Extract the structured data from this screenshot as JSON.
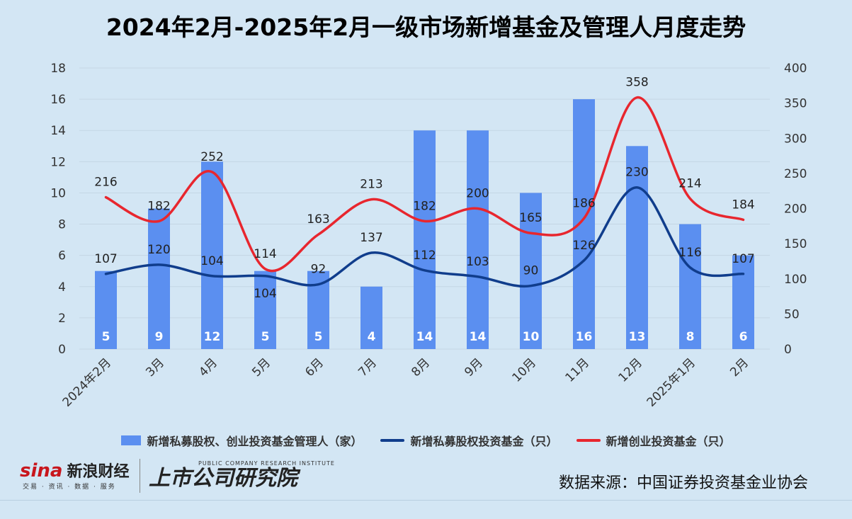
{
  "title": "2024年2月-2025年2月一级市场新增基金及管理人月度走势",
  "chart_data": {
    "type": "bar",
    "categories": [
      "2024年2月",
      "3月",
      "4月",
      "5月",
      "6月",
      "7月",
      "8月",
      "9月",
      "10月",
      "11月",
      "12月",
      "2025年1月",
      "2月"
    ],
    "left_axis": {
      "min": 0,
      "max": 18,
      "step": 2,
      "ticks": [
        "0",
        "2",
        "4",
        "6",
        "8",
        "10",
        "12",
        "14",
        "16",
        "18"
      ]
    },
    "right_axis": {
      "min": 0,
      "max": 400,
      "step": 50,
      "ticks": [
        "0",
        "50",
        "100",
        "150",
        "200",
        "250",
        "300",
        "350",
        "400"
      ]
    },
    "grid": true,
    "legend_position": "bottom",
    "series": [
      {
        "name": "新增私募股权、创业投资基金管理人（家）",
        "type": "bar",
        "axis": "left",
        "color": "#5b8ff0",
        "values": [
          5,
          9,
          12,
          5,
          5,
          4,
          14,
          14,
          10,
          16,
          13,
          8,
          6
        ],
        "labels": [
          "5",
          "9",
          "12",
          "5",
          "5",
          "4",
          "14",
          "14",
          "10",
          "16",
          "13",
          "8",
          "6"
        ]
      },
      {
        "name": "新增私募股权投资基金（只）",
        "type": "line",
        "axis": "right",
        "color": "#103d8c",
        "values": [
          107,
          120,
          104,
          104,
          92,
          137,
          112,
          103,
          90,
          126,
          230,
          116,
          107
        ],
        "labels": [
          "107",
          "120",
          "104",
          "104",
          "92",
          "137",
          "112",
          "103",
          "90",
          "126",
          "230",
          "116",
          "107"
        ]
      },
      {
        "name": "新增创业投资基金（只）",
        "type": "line",
        "axis": "right",
        "color": "#e8262e",
        "values": [
          216,
          182,
          252,
          114,
          163,
          213,
          182,
          200,
          165,
          186,
          358,
          214,
          184
        ],
        "labels": [
          "216",
          "182",
          "252",
          "114",
          "163",
          "213",
          "182",
          "200",
          "165",
          "186",
          "358",
          "214",
          "184"
        ]
      }
    ]
  },
  "legend": {
    "bar": "新增私募股权、创业投资基金管理人（家）",
    "pe": "新增私募股权投资基金（只）",
    "vc": "新增创业投资基金（只）"
  },
  "footer": {
    "logo_sina": "sina",
    "logo_sina_cn": "新浪财经",
    "logo_sina_sub": "交易 · 资讯 · 数据 · 服务",
    "logo_inst_en": "PUBLIC COMPANY RESEARCH INSTITUTE",
    "logo_inst_cn": "上市公司研究院",
    "source": "数据来源：中国证券投资基金业协会"
  },
  "colors": {
    "background": "#d3e6f4",
    "bar": "#5b8ff0",
    "pe_line": "#103d8c",
    "vc_line": "#e8262e"
  }
}
